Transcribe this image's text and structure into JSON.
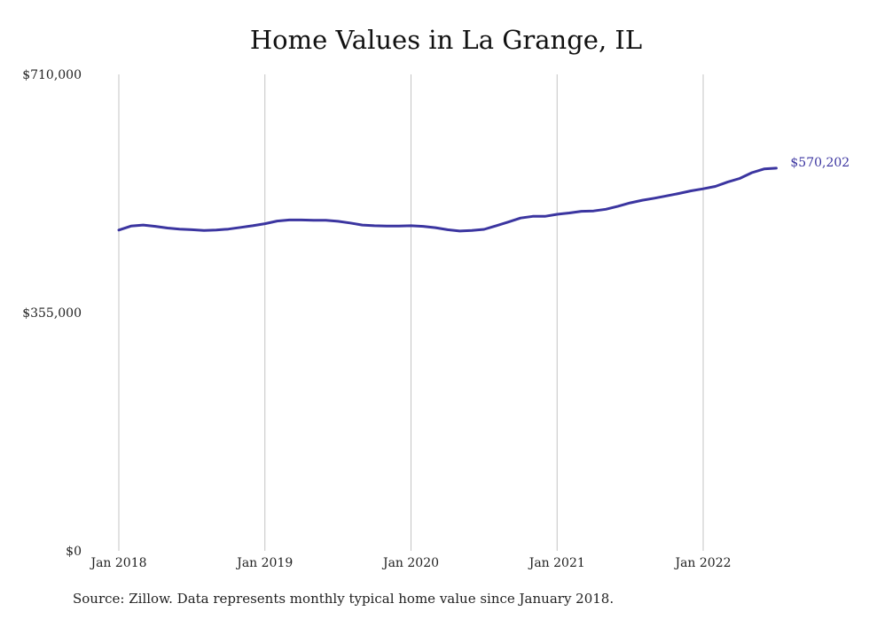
{
  "colors": {
    "line": "#3b35a0",
    "grid": "#c4c4c4",
    "text": "#222222"
  },
  "source": "Source: Zillow. Data represents monthly typical home value since January 2018.",
  "chart_data": {
    "type": "line",
    "title": "Home Values in La Grange, IL",
    "xlabel": "",
    "ylabel": "",
    "ylim": [
      0,
      710000
    ],
    "yticks": [
      {
        "value": 0,
        "label": "$0"
      },
      {
        "value": 355000,
        "label": "$355,000"
      },
      {
        "value": 710000,
        "label": "$710,000"
      }
    ],
    "xticks": [
      "Jan 2018",
      "Jan 2019",
      "Jan 2020",
      "Jan 2021",
      "Jan 2022"
    ],
    "grid": "vertical lines at each January",
    "end_label": "$570,202",
    "series": [
      {
        "x": [
          "2018-01",
          "2018-02",
          "2018-03",
          "2018-04",
          "2018-05",
          "2018-06",
          "2018-07",
          "2018-08",
          "2018-09",
          "2018-10",
          "2018-11",
          "2018-12",
          "2019-01",
          "2019-02",
          "2019-03",
          "2019-04",
          "2019-05",
          "2019-06",
          "2019-07",
          "2019-08",
          "2019-09",
          "2019-10",
          "2019-11",
          "2019-12",
          "2020-01",
          "2020-02",
          "2020-03",
          "2020-04",
          "2020-05",
          "2020-06",
          "2020-07",
          "2020-08",
          "2020-09",
          "2020-10",
          "2020-11",
          "2020-12",
          "2021-01",
          "2021-02",
          "2021-03",
          "2021-04",
          "2021-05",
          "2021-06",
          "2021-07",
          "2021-08",
          "2021-09",
          "2021-10",
          "2021-11",
          "2021-12",
          "2022-01",
          "2022-02",
          "2022-03",
          "2022-04",
          "2022-05",
          "2022-06",
          "2022-07"
        ],
        "values": [
          478000,
          484000,
          485500,
          483500,
          481000,
          479500,
          478500,
          477500,
          478000,
          479500,
          482000,
          484500,
          487500,
          491500,
          493000,
          493000,
          492500,
          492500,
          491000,
          488500,
          485500,
          484500,
          484000,
          484000,
          484500,
          483500,
          481500,
          478500,
          476500,
          477500,
          479000,
          484500,
          490000,
          496000,
          498500,
          498500,
          501500,
          503500,
          506000,
          506500,
          509000,
          513500,
          518500,
          522500,
          525500,
          529000,
          532500,
          536500,
          539500,
          543000,
          549500,
          555000,
          563500,
          569000,
          570202
        ]
      }
    ]
  }
}
